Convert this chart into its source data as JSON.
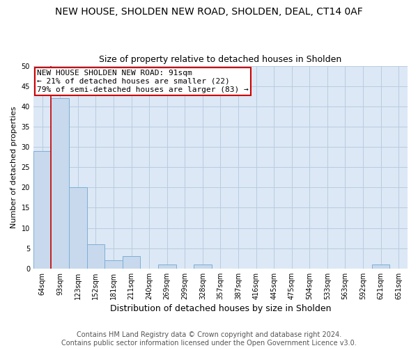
{
  "title": "NEW HOUSE, SHOLDEN NEW ROAD, SHOLDEN, DEAL, CT14 0AF",
  "subtitle": "Size of property relative to detached houses in Sholden",
  "xlabel": "Distribution of detached houses by size in Sholden",
  "ylabel": "Number of detached properties",
  "categories": [
    "64sqm",
    "93sqm",
    "123sqm",
    "152sqm",
    "181sqm",
    "211sqm",
    "240sqm",
    "269sqm",
    "299sqm",
    "328sqm",
    "357sqm",
    "387sqm",
    "416sqm",
    "445sqm",
    "475sqm",
    "504sqm",
    "533sqm",
    "563sqm",
    "592sqm",
    "621sqm",
    "651sqm"
  ],
  "values": [
    29,
    42,
    20,
    6,
    2,
    3,
    0,
    1,
    0,
    1,
    0,
    0,
    0,
    0,
    0,
    0,
    0,
    0,
    0,
    1,
    0
  ],
  "bar_color": "#c8d9ed",
  "bar_edge_color": "#7bafd4",
  "vline_color": "#cc0000",
  "annotation_text": "NEW HOUSE SHOLDEN NEW ROAD: 91sqm\n← 21% of detached houses are smaller (22)\n79% of semi-detached houses are larger (83) →",
  "annotation_box_color": "white",
  "annotation_box_edge_color": "#cc0000",
  "ylim": [
    0,
    50
  ],
  "yticks": [
    0,
    5,
    10,
    15,
    20,
    25,
    30,
    35,
    40,
    45,
    50
  ],
  "grid_color": "#b8cce0",
  "background_color": "#dce8f5",
  "footer_text": "Contains HM Land Registry data © Crown copyright and database right 2024.\nContains public sector information licensed under the Open Government Licence v3.0.",
  "title_fontsize": 10,
  "subtitle_fontsize": 9,
  "xlabel_fontsize": 9,
  "ylabel_fontsize": 8,
  "annotation_fontsize": 8,
  "footer_fontsize": 7
}
